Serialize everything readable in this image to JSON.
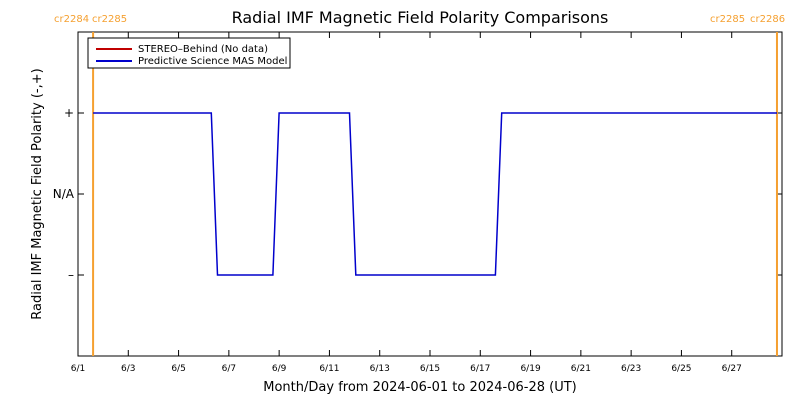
{
  "chart_data": {
    "type": "line",
    "title": "Radial IMF Magnetic Field Polarity Comparisons",
    "xlabel": "Month/Day from 2024-06-01 to 2024-06-28 (UT)",
    "ylabel": "Radial IMF Magnetic Field Polarity (-,+)",
    "x_unit": "day of June 2024",
    "xlim": [
      1.0,
      29.0
    ],
    "ylim": [
      -2,
      2
    ],
    "x_ticks": [
      {
        "value": 1,
        "label": "6/1"
      },
      {
        "value": 3,
        "label": "6/3"
      },
      {
        "value": 5,
        "label": "6/5"
      },
      {
        "value": 7,
        "label": "6/7"
      },
      {
        "value": 9,
        "label": "6/9"
      },
      {
        "value": 11,
        "label": "6/11"
      },
      {
        "value": 13,
        "label": "6/13"
      },
      {
        "value": 15,
        "label": "6/15"
      },
      {
        "value": 17,
        "label": "6/17"
      },
      {
        "value": 19,
        "label": "6/19"
      },
      {
        "value": 21,
        "label": "6/21"
      },
      {
        "value": 23,
        "label": "6/23"
      },
      {
        "value": 25,
        "label": "6/25"
      },
      {
        "value": 27,
        "label": "6/27"
      }
    ],
    "y_ticks": [
      {
        "value": 1,
        "label": "+"
      },
      {
        "value": 0,
        "label": "N/A"
      },
      {
        "value": -1,
        "label": "–"
      }
    ],
    "carrington_markers": [
      {
        "x": 1.6,
        "left_label": "cr2284",
        "right_label": "cr2285",
        "side": "left"
      },
      {
        "x": 28.8,
        "left_label": "cr2285",
        "right_label": "cr2286",
        "side": "right"
      }
    ],
    "marker_color": "#f5a030",
    "legend": {
      "placement": "top-left",
      "entries": [
        {
          "label": "STEREO–Behind (No data)",
          "color": "#c00000"
        },
        {
          "label": "Predictive Science MAS Model",
          "color": "#0000cc"
        }
      ]
    },
    "series": [
      {
        "name": "Predictive Science MAS Model",
        "color": "#0000cc",
        "points": [
          [
            1.6,
            1
          ],
          [
            6.3,
            1
          ],
          [
            6.55,
            -1
          ],
          [
            8.75,
            -1
          ],
          [
            9.0,
            1
          ],
          [
            11.8,
            1
          ],
          [
            12.05,
            -1
          ],
          [
            17.6,
            -1
          ],
          [
            17.85,
            1
          ],
          [
            28.8,
            1
          ]
        ]
      }
    ]
  }
}
